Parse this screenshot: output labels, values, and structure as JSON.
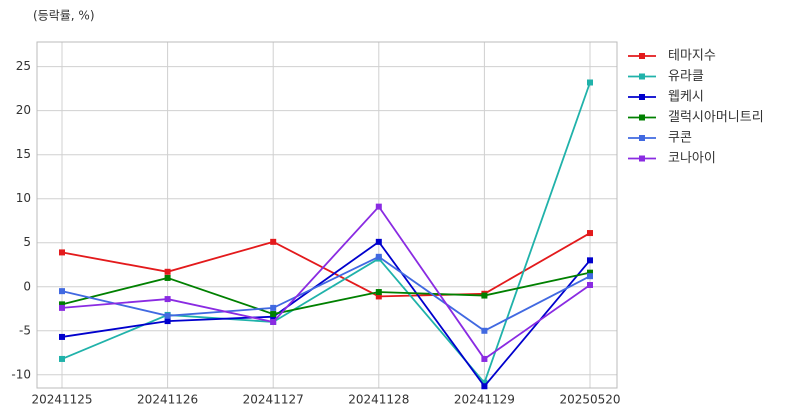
{
  "chart_data": {
    "type": "line",
    "y_label": "(등락률, %)",
    "categories": [
      "20241125",
      "20241126",
      "20241127",
      "20241128",
      "20241129",
      "20250520"
    ],
    "series": [
      {
        "name": "테마지수",
        "color": "#e31a1c",
        "values": [
          3.9,
          1.7,
          5.1,
          -1.1,
          -0.8,
          6.1
        ]
      },
      {
        "name": "유라클",
        "color": "#20b2aa",
        "values": [
          -8.2,
          -3.2,
          -4.0,
          3.2,
          -10.9,
          23.2
        ]
      },
      {
        "name": "웹케시",
        "color": "#0000cd",
        "values": [
          -5.7,
          -3.9,
          -3.4,
          5.1,
          -11.3,
          3.0
        ]
      },
      {
        "name": "갤럭시아머니트리",
        "color": "#008000",
        "values": [
          -2.0,
          1.0,
          -3.1,
          -0.6,
          -1.0,
          1.6
        ]
      },
      {
        "name": "쿠콘",
        "color": "#4169e1",
        "values": [
          -0.5,
          -3.3,
          -2.4,
          3.4,
          -5.0,
          1.2
        ]
      },
      {
        "name": "코나아이",
        "color": "#8a2be2",
        "values": [
          -2.4,
          -1.4,
          -4.0,
          9.1,
          -8.2,
          0.2
        ]
      }
    ],
    "ylim": [
      -11.5,
      27.8
    ],
    "yticks": [
      -10,
      -5,
      0,
      5,
      10,
      15,
      20,
      25
    ],
    "grid": true,
    "legend": "right"
  }
}
